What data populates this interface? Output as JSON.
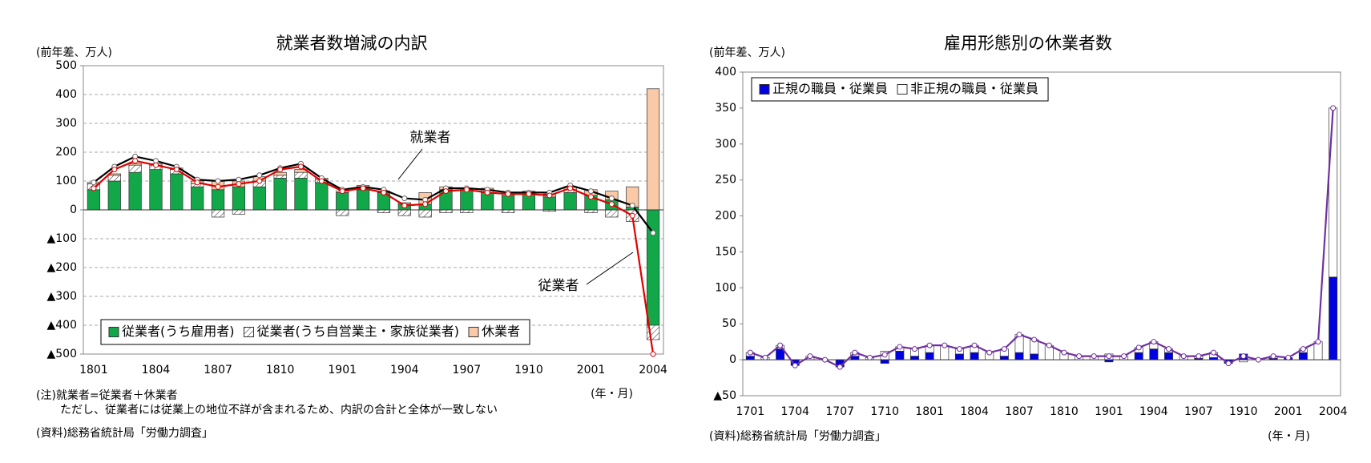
{
  "chart_data": [
    {
      "type": "bar",
      "stacked": true,
      "grid": true,
      "title": "就業者数増減の内訳",
      "y_label": "(前年差、万人)",
      "x_label": "(年・月)",
      "notes": [
        "(注)就業者=従業者＋休業者",
        "ただし、従業者には従業上の地位不詳が含まれるため、内訳の合計と全体が一致しない"
      ],
      "source": "(資料)総務省統計局「労働力調査」",
      "categories": [
        "1801",
        null,
        null,
        "1804",
        null,
        null,
        "1807",
        null,
        null,
        "1810",
        null,
        null,
        "1901",
        null,
        null,
        "1904",
        null,
        null,
        "1907",
        null,
        null,
        "1910",
        null,
        null,
        "2001",
        null,
        null,
        "2004"
      ],
      "ylim": [
        -500,
        500
      ],
      "yticks": [
        {
          "value": -500,
          "label": "▲500"
        },
        {
          "value": -400,
          "label": "▲400"
        },
        {
          "value": -300,
          "label": "▲300"
        },
        {
          "value": -200,
          "label": "▲200"
        },
        {
          "value": -100,
          "label": "▲100"
        },
        0,
        100,
        200,
        300,
        400,
        500
      ],
      "series": [
        {
          "name": "従業者(うち雇用者)",
          "type": "bar",
          "color": "#12a84a",
          "values": [
            70,
            100,
            130,
            140,
            125,
            80,
            70,
            80,
            80,
            110,
            110,
            95,
            60,
            70,
            60,
            20,
            20,
            70,
            70,
            60,
            50,
            55,
            45,
            60,
            50,
            35,
            10,
            -400
          ]
        },
        {
          "name": "従業者(うち自営業主・家族従業者)",
          "type": "bar",
          "color": "#ffffff",
          "pattern": "hatch",
          "values": [
            20,
            20,
            25,
            15,
            15,
            10,
            -25,
            -15,
            20,
            10,
            20,
            10,
            -20,
            10,
            -10,
            -20,
            -25,
            -10,
            -10,
            10,
            -10,
            5,
            -5,
            10,
            -10,
            -25,
            -40,
            -50
          ]
        },
        {
          "name": "休業者",
          "type": "bar",
          "color": "#f9c9a8",
          "values": [
            5,
            5,
            5,
            5,
            5,
            10,
            30,
            20,
            15,
            10,
            10,
            5,
            5,
            5,
            5,
            5,
            40,
            10,
            5,
            5,
            5,
            5,
            10,
            10,
            20,
            30,
            70,
            420
          ]
        },
        {
          "name": "就業者",
          "type": "line",
          "color": "#000000",
          "values": [
            95,
            150,
            185,
            170,
            150,
            105,
            100,
            105,
            120,
            145,
            160,
            110,
            70,
            80,
            70,
            40,
            35,
            75,
            75,
            70,
            60,
            60,
            60,
            85,
            65,
            40,
            15,
            -80
          ]
        },
        {
          "name": "従業者",
          "type": "line",
          "color": "#e00000",
          "values": [
            75,
            140,
            170,
            155,
            140,
            95,
            80,
            90,
            100,
            140,
            150,
            100,
            65,
            75,
            60,
            15,
            20,
            65,
            70,
            60,
            55,
            55,
            50,
            75,
            45,
            20,
            -20,
            -500
          ]
        }
      ]
    },
    {
      "type": "bar",
      "stacked": true,
      "grid": false,
      "title": "雇用形態別の休業者数",
      "y_label": "(前年差、万人)",
      "x_label": "(年・月)",
      "notes": [],
      "source": "(資料)総務省統計局「労働力調査」",
      "categories": [
        "1701",
        null,
        null,
        "1704",
        null,
        null,
        "1707",
        null,
        null,
        "1710",
        null,
        null,
        "1801",
        null,
        null,
        "1804",
        null,
        null,
        "1807",
        null,
        null,
        "1810",
        null,
        null,
        "1901",
        null,
        null,
        "1904",
        null,
        null,
        "1907",
        null,
        null,
        "1910",
        null,
        null,
        "2001",
        null,
        null,
        "2004"
      ],
      "ylim": [
        -50,
        400
      ],
      "yticks": [
        {
          "value": -50,
          "label": "▲50"
        },
        0,
        50,
        100,
        150,
        200,
        250,
        300,
        350,
        400
      ],
      "series": [
        {
          "name": "正規の職員・従業員",
          "type": "bar",
          "color": "#0000e0",
          "values": [
            5,
            0,
            15,
            -8,
            0,
            0,
            -10,
            5,
            0,
            -5,
            12,
            5,
            10,
            0,
            8,
            10,
            0,
            5,
            10,
            8,
            0,
            0,
            0,
            0,
            -3,
            0,
            10,
            15,
            10,
            0,
            2,
            3,
            -5,
            8,
            0,
            2,
            3,
            10,
            0,
            115
          ]
        },
        {
          "name": "非正規の職員・従業員",
          "type": "bar",
          "color": "#ffffff",
          "values": [
            5,
            3,
            5,
            0,
            5,
            0,
            0,
            5,
            3,
            12,
            6,
            10,
            10,
            20,
            7,
            10,
            10,
            10,
            25,
            20,
            20,
            10,
            5,
            5,
            8,
            5,
            7,
            10,
            5,
            5,
            3,
            7,
            0,
            -3,
            0,
            3,
            0,
            5,
            25,
            235
          ]
        },
        {
          "type": "line",
          "color": "#7030a0",
          "values": [
            10,
            3,
            20,
            -8,
            5,
            0,
            -10,
            10,
            3,
            7,
            18,
            15,
            20,
            20,
            15,
            20,
            10,
            15,
            35,
            28,
            20,
            10,
            5,
            5,
            5,
            5,
            17,
            25,
            15,
            5,
            5,
            10,
            -5,
            5,
            0,
            5,
            3,
            15,
            25,
            350
          ]
        }
      ]
    }
  ]
}
